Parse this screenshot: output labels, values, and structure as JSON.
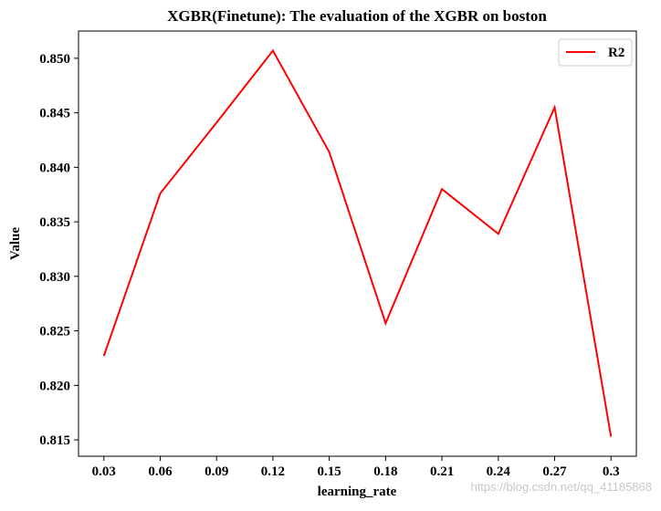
{
  "chart_data": {
    "type": "line",
    "title": "XGBR(Finetune): The evaluation of the XGBR on boston",
    "xlabel": "learning_rate",
    "ylabel": "Value",
    "x": [
      0.03,
      0.06,
      0.09,
      0.12,
      0.15,
      0.18,
      0.21,
      0.24,
      0.27,
      0.3
    ],
    "x_tick_labels": [
      "0.03",
      "0.06",
      "0.09",
      "0.12",
      "0.15",
      "0.18",
      "0.21",
      "0.24",
      "0.27",
      "0.3"
    ],
    "y_ticks": [
      0.815,
      0.82,
      0.825,
      0.83,
      0.835,
      0.84,
      0.845,
      0.85
    ],
    "y_tick_labels": [
      "0.815",
      "0.820",
      "0.825",
      "0.830",
      "0.835",
      "0.840",
      "0.845",
      "0.850"
    ],
    "series": [
      {
        "name": "R2",
        "color": "#ff0000",
        "values": [
          0.8227,
          0.8376,
          0.8441,
          0.8507,
          0.8414,
          0.8257,
          0.838,
          0.8339,
          0.8455,
          0.8153
        ]
      }
    ],
    "xlim": [
      0.0165,
      0.3135
    ],
    "ylim": [
      0.8135,
      0.8525
    ],
    "grid": false,
    "legend": "top-right"
  },
  "watermark": "https://blog.csdn.net/qq_41185868"
}
